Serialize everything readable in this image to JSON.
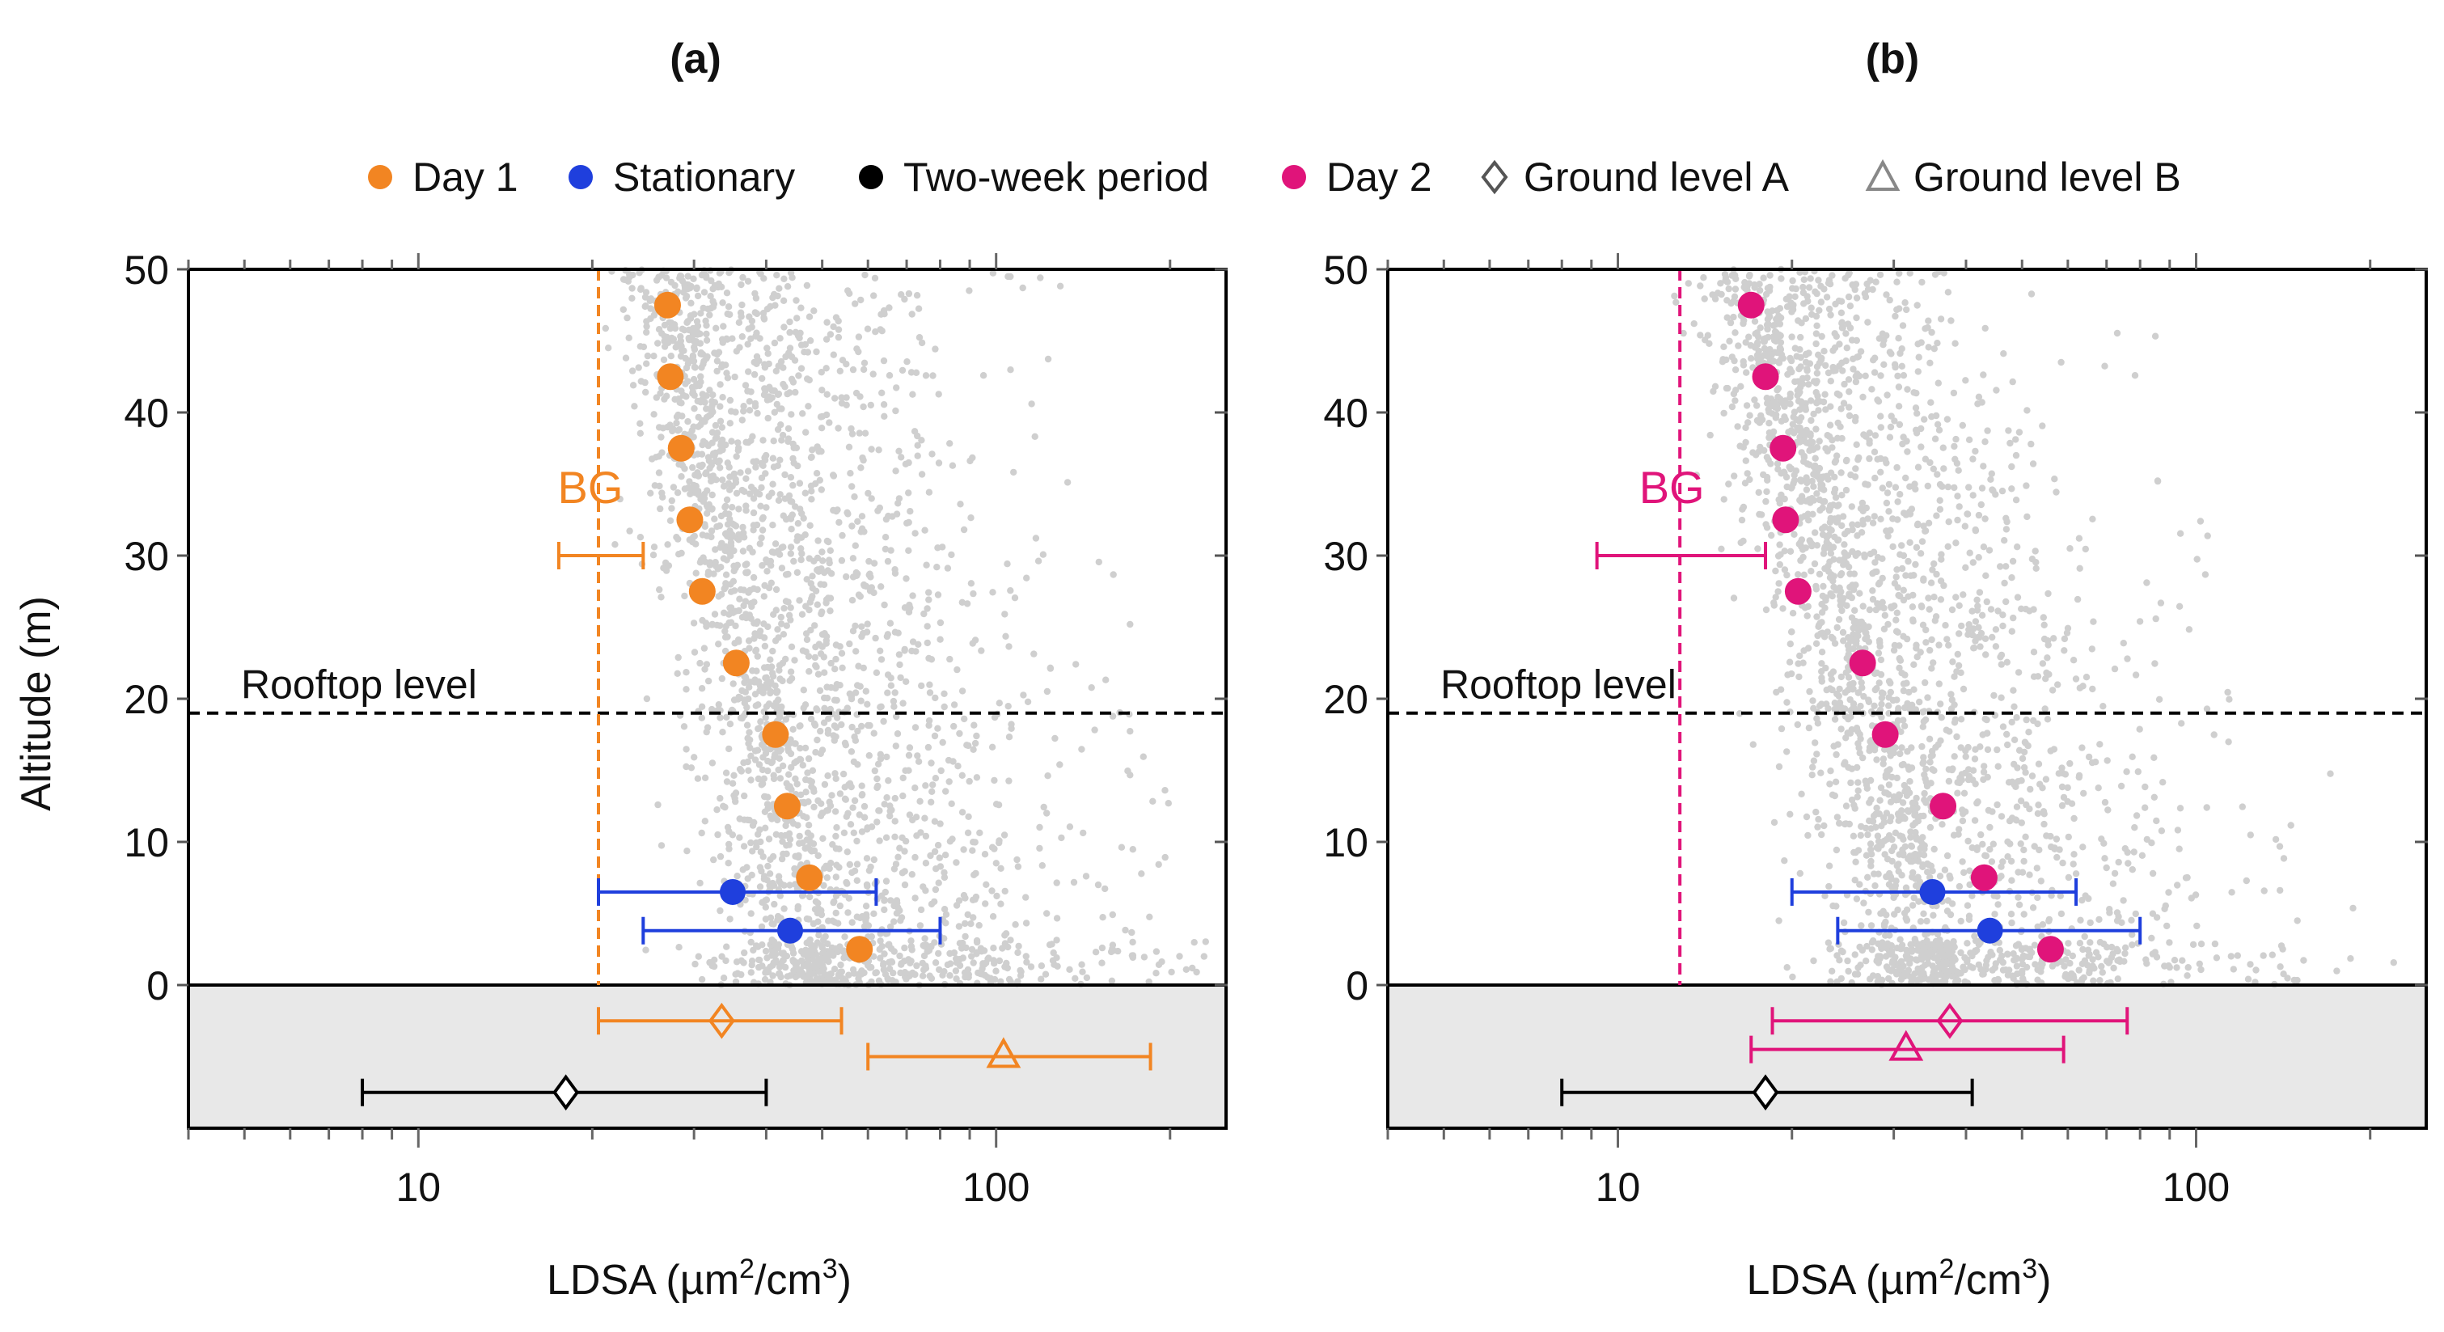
{
  "figure": {
    "legend": [
      {
        "label": "Day 1",
        "marker": "filled-circle",
        "color": "#f28522"
      },
      {
        "label": "Stationary",
        "marker": "filled-circle",
        "color": "#1f3fdd"
      },
      {
        "label": "Two-week period",
        "marker": "filled-circle",
        "color": "#000000"
      },
      {
        "label": "Day 2",
        "marker": "filled-circle",
        "color": "#e0147a"
      },
      {
        "label": "Ground level A",
        "marker": "open-diamond",
        "color": "#555555"
      },
      {
        "label": "Ground level B",
        "marker": "open-triangle",
        "color": "#888888"
      }
    ],
    "colors": {
      "day1": "#f28522",
      "day2": "#e0147a",
      "stationary": "#1f3fdd",
      "twoweek": "#000000",
      "scatter": "#cfcfcf",
      "ground_band": "#e8e8e8"
    }
  },
  "chart_data": [
    {
      "type": "scatter",
      "panel_title": "(a)",
      "xlabel": "LDSA (µm²/cm³)",
      "xlabel_base": "LDSA (µm",
      "xlabel_sup1": "2",
      "xlabel_mid": "/cm",
      "xlabel_sup2": "3",
      "xlabel_end": ")",
      "ylabel": "Altitude (m)",
      "xscale": "log",
      "xlim": [
        4,
        250
      ],
      "ylim": [
        -10,
        50
      ],
      "yticks": [
        0,
        10,
        20,
        30,
        40,
        50
      ],
      "ytick_labels": [
        "0",
        "10",
        "20",
        "30",
        "40",
        "50"
      ],
      "xticks_major": [
        10,
        100
      ],
      "xtick_labels": [
        "10",
        "100"
      ],
      "rooftop": {
        "y": 19,
        "label": "Rooftop level"
      },
      "bg": {
        "label": "BG",
        "line_x": 20.5,
        "center": 20.5,
        "low": 17.5,
        "high": 24.5,
        "y": 30
      },
      "scatter_cloud": {
        "x_center_top": 29,
        "x_center_bottom": 55,
        "x_min": 19.5,
        "x_max": 240
      },
      "profile": {
        "name": "Day 1",
        "altitude": [
          47.5,
          42.5,
          37.5,
          32.5,
          27.5,
          22.5,
          17.5,
          12.5,
          7.5,
          2.5
        ],
        "ldsa": [
          27,
          27.3,
          28.5,
          29.5,
          31,
          35.5,
          41.5,
          43.5,
          47.5,
          58
        ]
      },
      "stationary": [
        {
          "y": 6.5,
          "center": 35,
          "low": 20.5,
          "high": 62
        },
        {
          "y": 3.8,
          "center": 44,
          "low": 24.5,
          "high": 80
        }
      ],
      "ground_a": {
        "y": -2.5,
        "center": 33.5,
        "low": 20.5,
        "high": 54
      },
      "ground_b": {
        "y": -5,
        "center": 103,
        "low": 60,
        "high": 185
      },
      "two_week": {
        "y": -7.5,
        "center": 18,
        "low": 8,
        "high": 40
      }
    },
    {
      "type": "scatter",
      "panel_title": "(b)",
      "xlabel": "LDSA (µm²/cm³)",
      "xlabel_base": "LDSA (µm",
      "xlabel_sup1": "2",
      "xlabel_mid": "/cm",
      "xlabel_sup2": "3",
      "xlabel_end": ")",
      "ylabel": "",
      "xscale": "log",
      "xlim": [
        4,
        250
      ],
      "ylim": [
        -10,
        50
      ],
      "yticks": [
        0,
        10,
        20,
        30,
        40,
        50
      ],
      "ytick_labels": [
        "0",
        "10",
        "20",
        "30",
        "40",
        "50"
      ],
      "xticks_major": [
        10,
        100
      ],
      "xtick_labels": [
        "10",
        "100"
      ],
      "rooftop": {
        "y": 19,
        "label": "Rooftop level"
      },
      "bg": {
        "label": "BG",
        "line_x": 12.8,
        "center": 12.8,
        "low": 9.2,
        "high": 18
      },
      "scatter_cloud": {
        "x_center_top": 18,
        "x_center_bottom": 40,
        "x_min": 6,
        "x_max": 240
      },
      "profile": {
        "name": "Day 2",
        "altitude": [
          47.5,
          42.5,
          37.5,
          32.5,
          27.5,
          22.5,
          17.5,
          12.5,
          7.5,
          2.5
        ],
        "ldsa": [
          17,
          18,
          19.3,
          19.5,
          20.5,
          26.5,
          29,
          36.5,
          43,
          56
        ]
      },
      "stationary": [
        {
          "y": 6.5,
          "center": 35,
          "low": 20,
          "high": 62
        },
        {
          "y": 3.8,
          "center": 44,
          "low": 24,
          "high": 80
        }
      ],
      "ground_a": {
        "y": -2.5,
        "center": 37.5,
        "low": 18.5,
        "high": 76
      },
      "ground_b": {
        "y": -4.5,
        "center": 31.5,
        "low": 17,
        "high": 59
      },
      "two_week": {
        "y": -7.5,
        "center": 18,
        "low": 8,
        "high": 41
      }
    }
  ]
}
